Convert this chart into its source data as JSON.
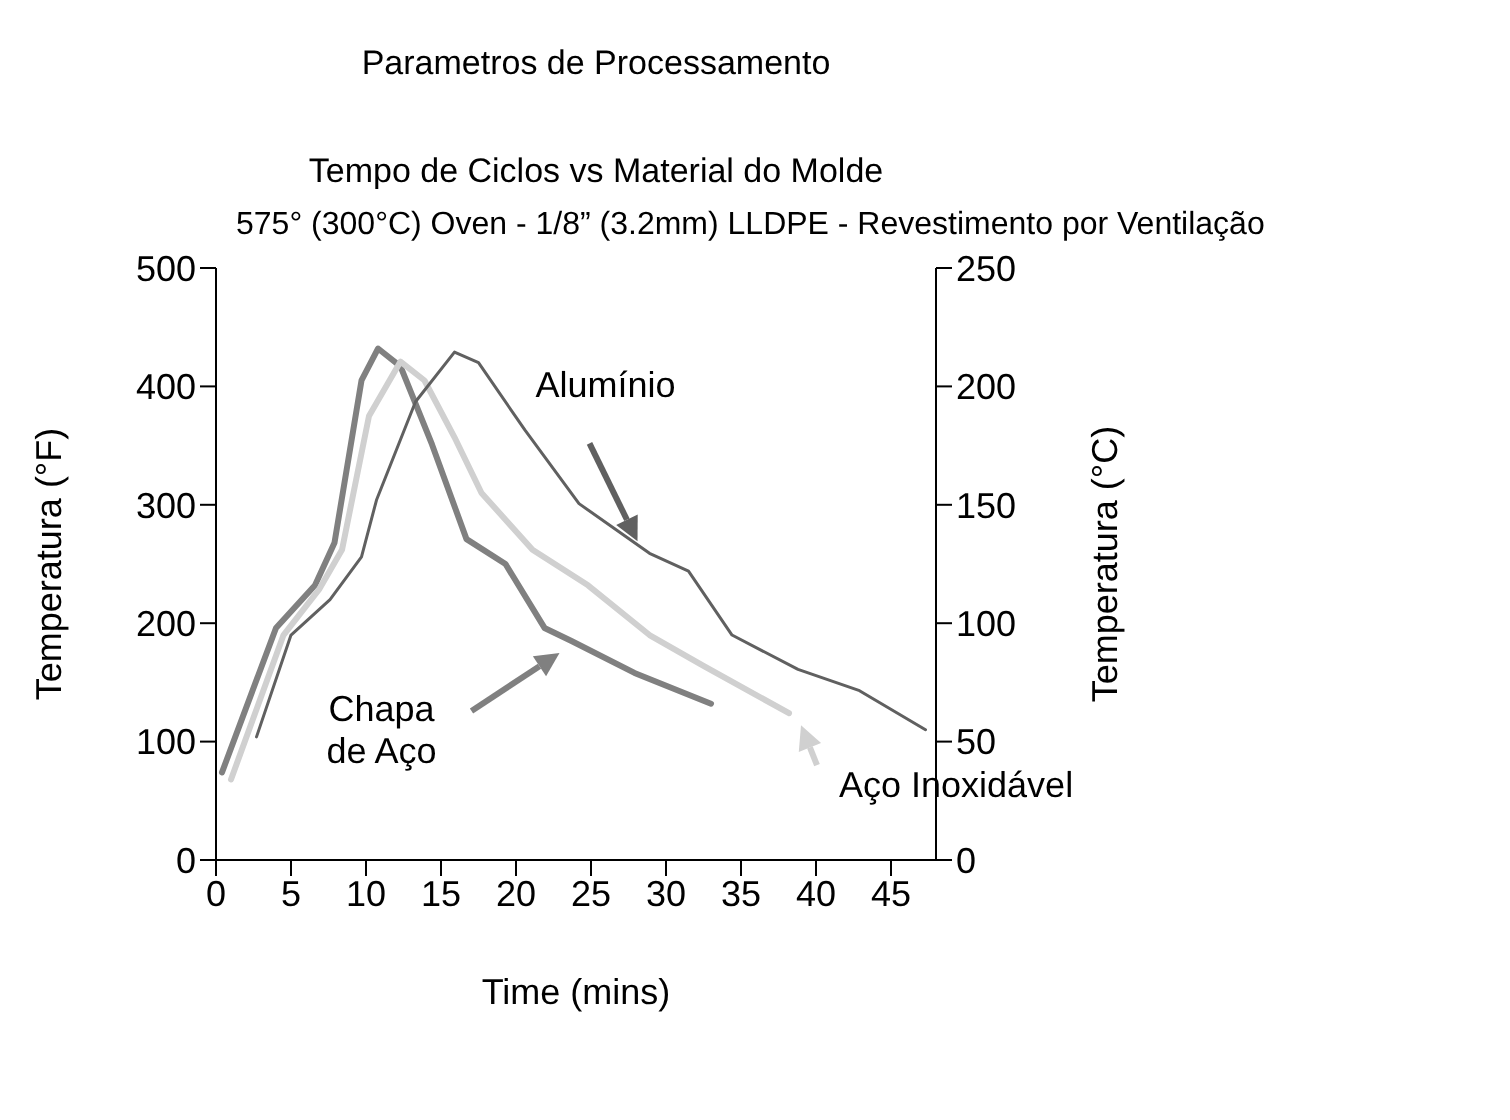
{
  "chart_data": {
    "type": "line",
    "title": "Parametros de Processamento",
    "subtitle": "Tempo de Ciclos vs Material do Molde",
    "annotations": [
      "575° (300°C) Oven - 1/8” (3.2mm) LLDPE - Revestimento por Ventilação"
    ],
    "xlabel": "Time (mins)",
    "ylabel": "Temperatura (°F)",
    "y2label": "Temperatura (°C)",
    "grid": false,
    "xlim": [
      0,
      48
    ],
    "xticks": [
      0,
      5,
      10,
      15,
      20,
      25,
      30,
      35,
      40,
      45
    ],
    "ylim": [
      0,
      500
    ],
    "yticks": [
      0,
      100,
      200,
      300,
      400,
      500
    ],
    "y2lim": [
      0,
      250
    ],
    "y2ticks": [
      0,
      50,
      100,
      150,
      200,
      250
    ],
    "series": [
      {
        "name": "Chapa de Aço",
        "color": "#808080",
        "x": [
          0.4,
          4,
          6.6,
          7.9,
          9.7,
          10.8,
          12.3,
          14.4,
          16.7,
          19.3,
          21.9,
          23.7,
          27.9,
          33
        ],
        "values": [
          74,
          196,
          232,
          268,
          405,
          432,
          417,
          351,
          271,
          250,
          196,
          185,
          158,
          132
        ]
      },
      {
        "name": "Aço Inoxidável",
        "color": "#d0d0d0",
        "x": [
          1,
          4.5,
          6.9,
          8.4,
          10.2,
          12.3,
          13.9,
          15.9,
          17.7,
          21.1,
          24.8,
          28.9,
          32.5,
          38.2
        ],
        "values": [
          68,
          190,
          229,
          262,
          375,
          421,
          405,
          357,
          310,
          262,
          232,
          190,
          164,
          124
        ]
      },
      {
        "name": "Alumínio",
        "color": "#606060",
        "x": [
          2.7,
          5,
          7.6,
          9.7,
          10.7,
          13.3,
          15.9,
          17.5,
          20.6,
          24.2,
          28.9,
          31.5,
          34.4,
          38.8,
          42.9,
          47.3
        ],
        "values": [
          104,
          190,
          220,
          256,
          304,
          387,
          429,
          420,
          363,
          301,
          259,
          244,
          190,
          161,
          143,
          110
        ]
      }
    ]
  }
}
